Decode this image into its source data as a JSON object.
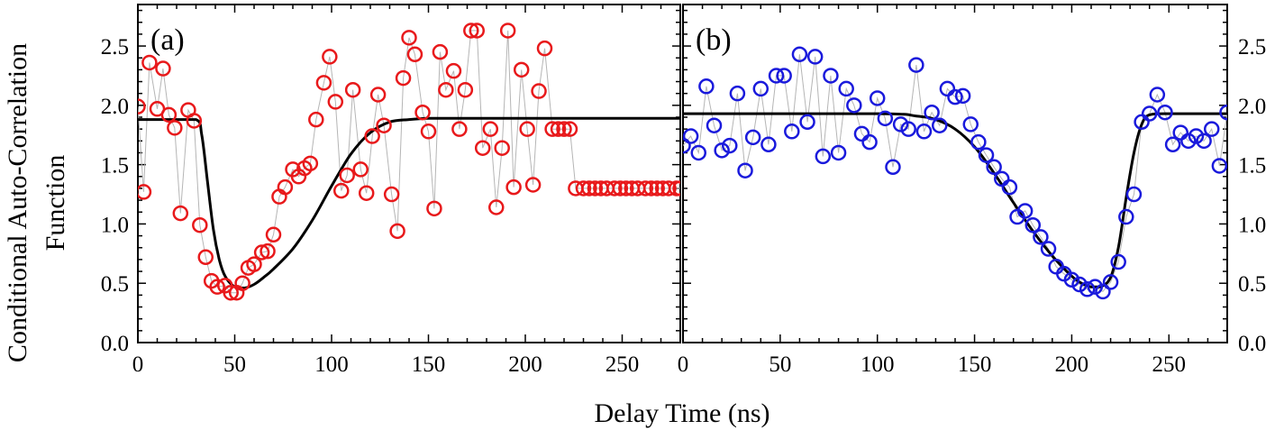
{
  "figure": {
    "ylabel_line1": "Conditional Auto-Correlation",
    "ylabel_line2": "Function",
    "xlabel": "Delay Time (ns)"
  },
  "chart_data": [
    {
      "type": "scatter",
      "panel_label": "(a)",
      "xlim": [
        0,
        280
      ],
      "ylim": [
        0,
        2.85
      ],
      "xticks": [
        0,
        50,
        100,
        150,
        200,
        250
      ],
      "yticks": [
        0.0,
        0.5,
        1.0,
        1.5,
        2.0,
        2.5
      ],
      "ytick_labels": [
        "0.0",
        "0.5",
        "1.0",
        "1.5",
        "2.0",
        "2.5"
      ],
      "y_axis_side": "left",
      "marker_color": "#e8191b",
      "marker": "open-circle",
      "connect_points": true,
      "x": [
        0,
        3,
        6,
        10,
        13,
        16,
        19,
        22,
        26,
        29,
        32,
        35,
        38,
        41,
        45,
        48,
        51,
        54,
        57,
        60,
        64,
        67,
        70,
        73,
        76,
        80,
        83,
        86,
        89,
        92,
        96,
        99,
        102,
        105,
        108,
        111,
        115,
        118,
        121,
        124,
        127,
        131,
        134,
        137,
        140,
        143,
        147,
        150,
        153,
        156,
        159,
        163,
        166,
        169,
        172,
        175,
        178,
        182,
        185,
        188,
        191,
        194,
        198,
        201,
        204,
        207,
        210,
        214,
        217,
        220,
        223,
        226,
        230,
        233,
        236,
        239,
        242,
        246,
        249,
        252,
        255,
        258,
        262,
        265,
        268,
        271,
        274,
        278,
        280
      ],
      "y": [
        1.99,
        1.27,
        2.36,
        1.97,
        2.31,
        1.92,
        1.81,
        1.09,
        1.96,
        1.87,
        0.99,
        0.72,
        0.52,
        0.47,
        0.48,
        0.42,
        0.42,
        0.5,
        0.63,
        0.66,
        0.76,
        0.77,
        0.91,
        1.23,
        1.31,
        1.46,
        1.4,
        1.47,
        1.51,
        1.88,
        2.19,
        2.41,
        2.03,
        1.28,
        1.41,
        2.13,
        1.46,
        1.26,
        1.74,
        2.09,
        1.83,
        1.25,
        0.94,
        2.23,
        2.57,
        2.43,
        1.94,
        1.78,
        1.13,
        2.45,
        2.13,
        2.29,
        1.8,
        2.13,
        2.63,
        2.63,
        1.64,
        1.8,
        1.14,
        1.64,
        2.63,
        1.31,
        2.3,
        1.8,
        1.33,
        2.12,
        2.48,
        1.8,
        1.8,
        1.8,
        1.8,
        1.3,
        1.3,
        1.3,
        1.3,
        1.3,
        1.3,
        1.3,
        1.3,
        1.3,
        1.3,
        1.3,
        1.3,
        1.3,
        1.3,
        1.3,
        1.3,
        1.3,
        1.3
      ],
      "fit": {
        "x": [
          0,
          30,
          33,
          36,
          39,
          42,
          45,
          50,
          55,
          60,
          65,
          70,
          80,
          90,
          100,
          110,
          120,
          130,
          140,
          150,
          160,
          200,
          280
        ],
        "y": [
          1.88,
          1.88,
          1.75,
          1.35,
          0.95,
          0.7,
          0.56,
          0.47,
          0.46,
          0.49,
          0.55,
          0.62,
          0.79,
          1.03,
          1.32,
          1.59,
          1.77,
          1.86,
          1.88,
          1.89,
          1.89,
          1.89,
          1.89
        ]
      }
    },
    {
      "type": "scatter",
      "panel_label": "(b)",
      "xlim": [
        0,
        280
      ],
      "ylim": [
        0,
        2.85
      ],
      "xticks": [
        0,
        50,
        100,
        150,
        200,
        250
      ],
      "yticks": [
        0.0,
        0.5,
        1.0,
        1.5,
        2.0,
        2.5
      ],
      "ytick_labels": [
        "0.0",
        "0.5",
        "1.0",
        "1.5",
        "2.0",
        "2.5"
      ],
      "y_axis_side": "right",
      "marker_color": "#1a1adc",
      "marker": "open-circle",
      "connect_points": true,
      "x": [
        0,
        4,
        8,
        12,
        16,
        20,
        24,
        28,
        32,
        36,
        40,
        44,
        48,
        52,
        56,
        60,
        64,
        68,
        72,
        76,
        80,
        84,
        88,
        92,
        96,
        100,
        104,
        108,
        112,
        116,
        120,
        124,
        128,
        132,
        136,
        140,
        144,
        148,
        152,
        156,
        160,
        164,
        168,
        172,
        176,
        180,
        184,
        188,
        192,
        196,
        200,
        204,
        208,
        212,
        216,
        220,
        224,
        228,
        232,
        236,
        240,
        244,
        248,
        252,
        256,
        260,
        264,
        268,
        272,
        276,
        280
      ],
      "y": [
        1.66,
        1.74,
        1.6,
        2.16,
        1.83,
        1.62,
        1.66,
        2.1,
        1.45,
        1.73,
        2.14,
        1.67,
        2.25,
        2.25,
        1.78,
        2.43,
        1.86,
        2.41,
        1.57,
        2.25,
        1.6,
        2.14,
        2.0,
        1.76,
        1.69,
        2.06,
        1.89,
        1.48,
        1.84,
        1.8,
        2.34,
        1.78,
        1.94,
        1.83,
        2.14,
        2.07,
        2.08,
        1.84,
        1.69,
        1.58,
        1.48,
        1.38,
        1.31,
        1.06,
        1.11,
        0.99,
        0.89,
        0.79,
        0.64,
        0.58,
        0.53,
        0.49,
        0.45,
        0.47,
        0.43,
        0.51,
        0.68,
        1.06,
        1.25,
        1.86,
        1.93,
        2.09,
        1.94,
        1.67,
        1.77,
        1.7,
        1.74,
        1.7,
        1.8,
        1.49,
        1.94
      ],
      "fit": {
        "x": [
          0,
          100,
          120,
          130,
          140,
          150,
          160,
          170,
          180,
          190,
          200,
          205,
          210,
          215,
          220,
          224,
          228,
          232,
          236,
          240,
          250,
          280
        ],
        "y": [
          1.93,
          1.93,
          1.91,
          1.88,
          1.8,
          1.65,
          1.43,
          1.18,
          0.94,
          0.73,
          0.56,
          0.5,
          0.47,
          0.47,
          0.55,
          0.8,
          1.22,
          1.6,
          1.84,
          1.92,
          1.93,
          1.93
        ]
      }
    }
  ]
}
